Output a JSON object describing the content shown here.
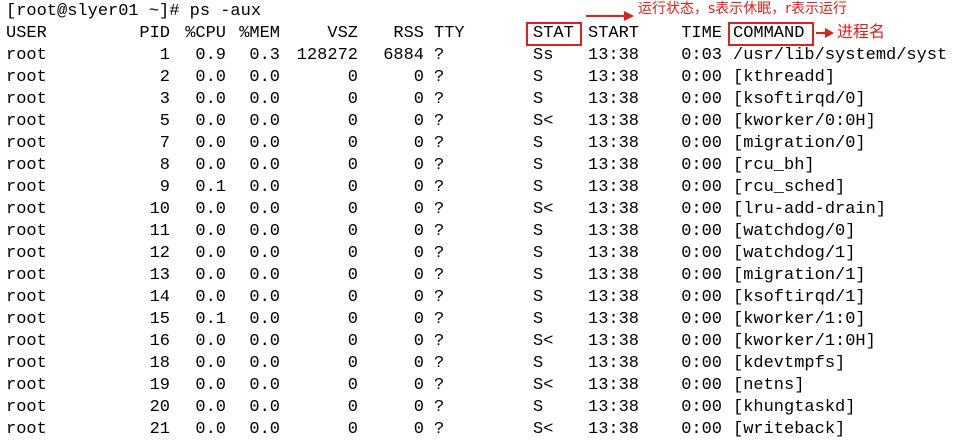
{
  "terminal": {
    "prompt": "[root@slyer01 ~]# ps -aux",
    "headers": {
      "user": "USER",
      "pid": "PID",
      "cpu": "%CPU",
      "mem": "%MEM",
      "vsz": "VSZ",
      "rss": "RSS",
      "tty": "TTY",
      "stat": "STAT",
      "start": "START",
      "time": "TIME",
      "command": "COMMAND"
    },
    "rows": [
      {
        "user": "root",
        "pid": "1",
        "cpu": "0.9",
        "mem": "0.3",
        "vsz": "128272",
        "rss": "6884",
        "tty": "?",
        "stat": "Ss",
        "start": "13:38",
        "time": "0:03",
        "command": "/usr/lib/systemd/syst"
      },
      {
        "user": "root",
        "pid": "2",
        "cpu": "0.0",
        "mem": "0.0",
        "vsz": "0",
        "rss": "0",
        "tty": "?",
        "stat": "S",
        "start": "13:38",
        "time": "0:00",
        "command": "[kthreadd]"
      },
      {
        "user": "root",
        "pid": "3",
        "cpu": "0.0",
        "mem": "0.0",
        "vsz": "0",
        "rss": "0",
        "tty": "?",
        "stat": "S",
        "start": "13:38",
        "time": "0:00",
        "command": "[ksoftirqd/0]"
      },
      {
        "user": "root",
        "pid": "5",
        "cpu": "0.0",
        "mem": "0.0",
        "vsz": "0",
        "rss": "0",
        "tty": "?",
        "stat": "S<",
        "start": "13:38",
        "time": "0:00",
        "command": "[kworker/0:0H]"
      },
      {
        "user": "root",
        "pid": "7",
        "cpu": "0.0",
        "mem": "0.0",
        "vsz": "0",
        "rss": "0",
        "tty": "?",
        "stat": "S",
        "start": "13:38",
        "time": "0:00",
        "command": "[migration/0]"
      },
      {
        "user": "root",
        "pid": "8",
        "cpu": "0.0",
        "mem": "0.0",
        "vsz": "0",
        "rss": "0",
        "tty": "?",
        "stat": "S",
        "start": "13:38",
        "time": "0:00",
        "command": "[rcu_bh]"
      },
      {
        "user": "root",
        "pid": "9",
        "cpu": "0.1",
        "mem": "0.0",
        "vsz": "0",
        "rss": "0",
        "tty": "?",
        "stat": "S",
        "start": "13:38",
        "time": "0:00",
        "command": "[rcu_sched]"
      },
      {
        "user": "root",
        "pid": "10",
        "cpu": "0.0",
        "mem": "0.0",
        "vsz": "0",
        "rss": "0",
        "tty": "?",
        "stat": "S<",
        "start": "13:38",
        "time": "0:00",
        "command": "[lru-add-drain]"
      },
      {
        "user": "root",
        "pid": "11",
        "cpu": "0.0",
        "mem": "0.0",
        "vsz": "0",
        "rss": "0",
        "tty": "?",
        "stat": "S",
        "start": "13:38",
        "time": "0:00",
        "command": "[watchdog/0]"
      },
      {
        "user": "root",
        "pid": "12",
        "cpu": "0.0",
        "mem": "0.0",
        "vsz": "0",
        "rss": "0",
        "tty": "?",
        "stat": "S",
        "start": "13:38",
        "time": "0:00",
        "command": "[watchdog/1]"
      },
      {
        "user": "root",
        "pid": "13",
        "cpu": "0.0",
        "mem": "0.0",
        "vsz": "0",
        "rss": "0",
        "tty": "?",
        "stat": "S",
        "start": "13:38",
        "time": "0:00",
        "command": "[migration/1]"
      },
      {
        "user": "root",
        "pid": "14",
        "cpu": "0.0",
        "mem": "0.0",
        "vsz": "0",
        "rss": "0",
        "tty": "?",
        "stat": "S",
        "start": "13:38",
        "time": "0:00",
        "command": "[ksoftirqd/1]"
      },
      {
        "user": "root",
        "pid": "15",
        "cpu": "0.1",
        "mem": "0.0",
        "vsz": "0",
        "rss": "0",
        "tty": "?",
        "stat": "S",
        "start": "13:38",
        "time": "0:00",
        "command": "[kworker/1:0]"
      },
      {
        "user": "root",
        "pid": "16",
        "cpu": "0.0",
        "mem": "0.0",
        "vsz": "0",
        "rss": "0",
        "tty": "?",
        "stat": "S<",
        "start": "13:38",
        "time": "0:00",
        "command": "[kworker/1:0H]"
      },
      {
        "user": "root",
        "pid": "18",
        "cpu": "0.0",
        "mem": "0.0",
        "vsz": "0",
        "rss": "0",
        "tty": "?",
        "stat": "S",
        "start": "13:38",
        "time": "0:00",
        "command": "[kdevtmpfs]"
      },
      {
        "user": "root",
        "pid": "19",
        "cpu": "0.0",
        "mem": "0.0",
        "vsz": "0",
        "rss": "0",
        "tty": "?",
        "stat": "S<",
        "start": "13:38",
        "time": "0:00",
        "command": "[netns]"
      },
      {
        "user": "root",
        "pid": "20",
        "cpu": "0.0",
        "mem": "0.0",
        "vsz": "0",
        "rss": "0",
        "tty": "?",
        "stat": "S",
        "start": "13:38",
        "time": "0:00",
        "command": "[khungtaskd]"
      },
      {
        "user": "root",
        "pid": "21",
        "cpu": "0.0",
        "mem": "0.0",
        "vsz": "0",
        "rss": "0",
        "tty": "?",
        "stat": "S<",
        "start": "13:38",
        "time": "0:00",
        "command": "[writeback]"
      }
    ]
  },
  "annotations": {
    "stat_note": "运行状态，s表示休眠，r表示运行",
    "command_note": "进程名",
    "color": "#e0201b"
  }
}
